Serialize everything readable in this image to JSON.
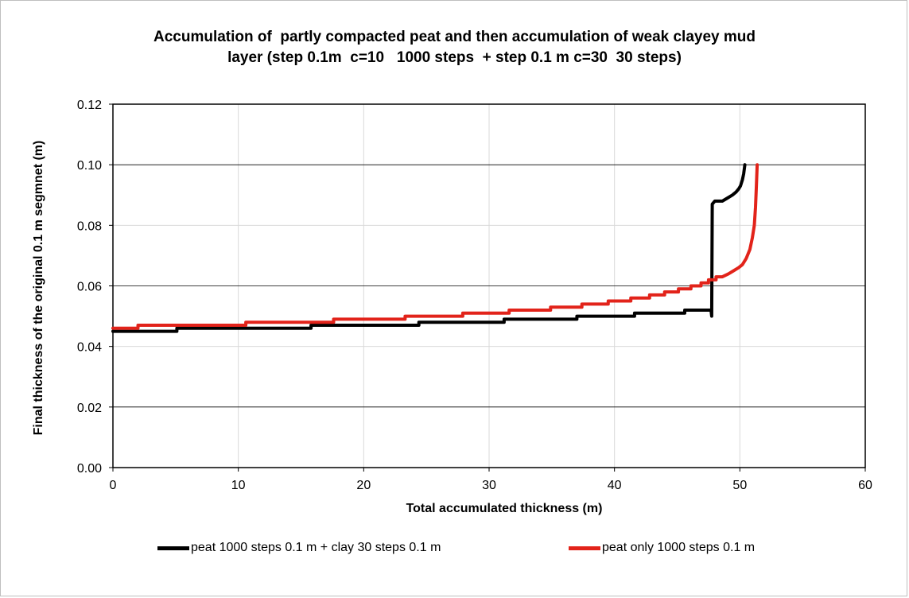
{
  "chart_data": {
    "type": "line",
    "title_lines": [
      "Accumulation of  partly compacted peat and then accumulation of weak clayey mud",
      "layer (step 0.1m  c=10   1000 steps  + step 0.1 m c=30  30 steps)"
    ],
    "xlabel": "Total accumulated thickness (m)",
    "ylabel": "Final thickness of the original 0.1 m segmnet (m)",
    "xlim": [
      0,
      60
    ],
    "ylim": [
      0,
      0.12
    ],
    "x_ticks": [
      "0",
      "10",
      "20",
      "30",
      "40",
      "50",
      "60"
    ],
    "y_ticks": [
      "0.00",
      "0.02",
      "0.04",
      "0.06",
      "0.08",
      "0.10",
      "0.12"
    ],
    "grid": true,
    "legend_position": "bottom",
    "series": [
      {
        "name": "peat 1000 steps 0.1 m + clay 30 steps 0.1 m",
        "color": "#000000",
        "points": [
          [
            0,
            0.045
          ],
          [
            5.1,
            0.045
          ],
          [
            5.1,
            0.046
          ],
          [
            15.8,
            0.046
          ],
          [
            15.8,
            0.047
          ],
          [
            24.4,
            0.047
          ],
          [
            24.4,
            0.048
          ],
          [
            31.2,
            0.048
          ],
          [
            31.2,
            0.049
          ],
          [
            37.0,
            0.049
          ],
          [
            37.0,
            0.05
          ],
          [
            41.6,
            0.05
          ],
          [
            41.6,
            0.051
          ],
          [
            45.6,
            0.051
          ],
          [
            45.6,
            0.052
          ],
          [
            47.7,
            0.052
          ],
          [
            47.75,
            0.05
          ],
          [
            47.8,
            0.087
          ],
          [
            48.0,
            0.088
          ],
          [
            48.6,
            0.088
          ],
          [
            49.0,
            0.089
          ],
          [
            49.4,
            0.09
          ],
          [
            49.7,
            0.091
          ],
          [
            49.9,
            0.092
          ],
          [
            50.05,
            0.093
          ],
          [
            50.2,
            0.095
          ],
          [
            50.3,
            0.097
          ],
          [
            50.4,
            0.1
          ]
        ]
      },
      {
        "name": "peat only 1000 steps 0.1 m",
        "color": "#e2231a",
        "points": [
          [
            0,
            0.046
          ],
          [
            2.0,
            0.046
          ],
          [
            2.0,
            0.047
          ],
          [
            10.6,
            0.047
          ],
          [
            10.6,
            0.048
          ],
          [
            17.6,
            0.048
          ],
          [
            17.6,
            0.049
          ],
          [
            23.3,
            0.049
          ],
          [
            23.3,
            0.05
          ],
          [
            27.9,
            0.05
          ],
          [
            27.9,
            0.051
          ],
          [
            31.6,
            0.051
          ],
          [
            31.6,
            0.052
          ],
          [
            34.9,
            0.052
          ],
          [
            34.9,
            0.053
          ],
          [
            37.4,
            0.053
          ],
          [
            37.4,
            0.054
          ],
          [
            39.5,
            0.054
          ],
          [
            39.5,
            0.055
          ],
          [
            41.3,
            0.055
          ],
          [
            41.3,
            0.056
          ],
          [
            42.8,
            0.056
          ],
          [
            42.8,
            0.057
          ],
          [
            44.0,
            0.057
          ],
          [
            44.0,
            0.058
          ],
          [
            45.1,
            0.058
          ],
          [
            45.1,
            0.059
          ],
          [
            46.1,
            0.059
          ],
          [
            46.1,
            0.06
          ],
          [
            46.9,
            0.06
          ],
          [
            46.9,
            0.061
          ],
          [
            47.5,
            0.061
          ],
          [
            47.5,
            0.062
          ],
          [
            48.1,
            0.062
          ],
          [
            48.1,
            0.063
          ],
          [
            48.6,
            0.063
          ],
          [
            49.1,
            0.064
          ],
          [
            49.5,
            0.065
          ],
          [
            49.9,
            0.066
          ],
          [
            50.2,
            0.067
          ],
          [
            50.5,
            0.069
          ],
          [
            50.8,
            0.072
          ],
          [
            51.0,
            0.076
          ],
          [
            51.15,
            0.08
          ],
          [
            51.25,
            0.086
          ],
          [
            51.32,
            0.093
          ],
          [
            51.38,
            0.1
          ]
        ]
      }
    ]
  }
}
